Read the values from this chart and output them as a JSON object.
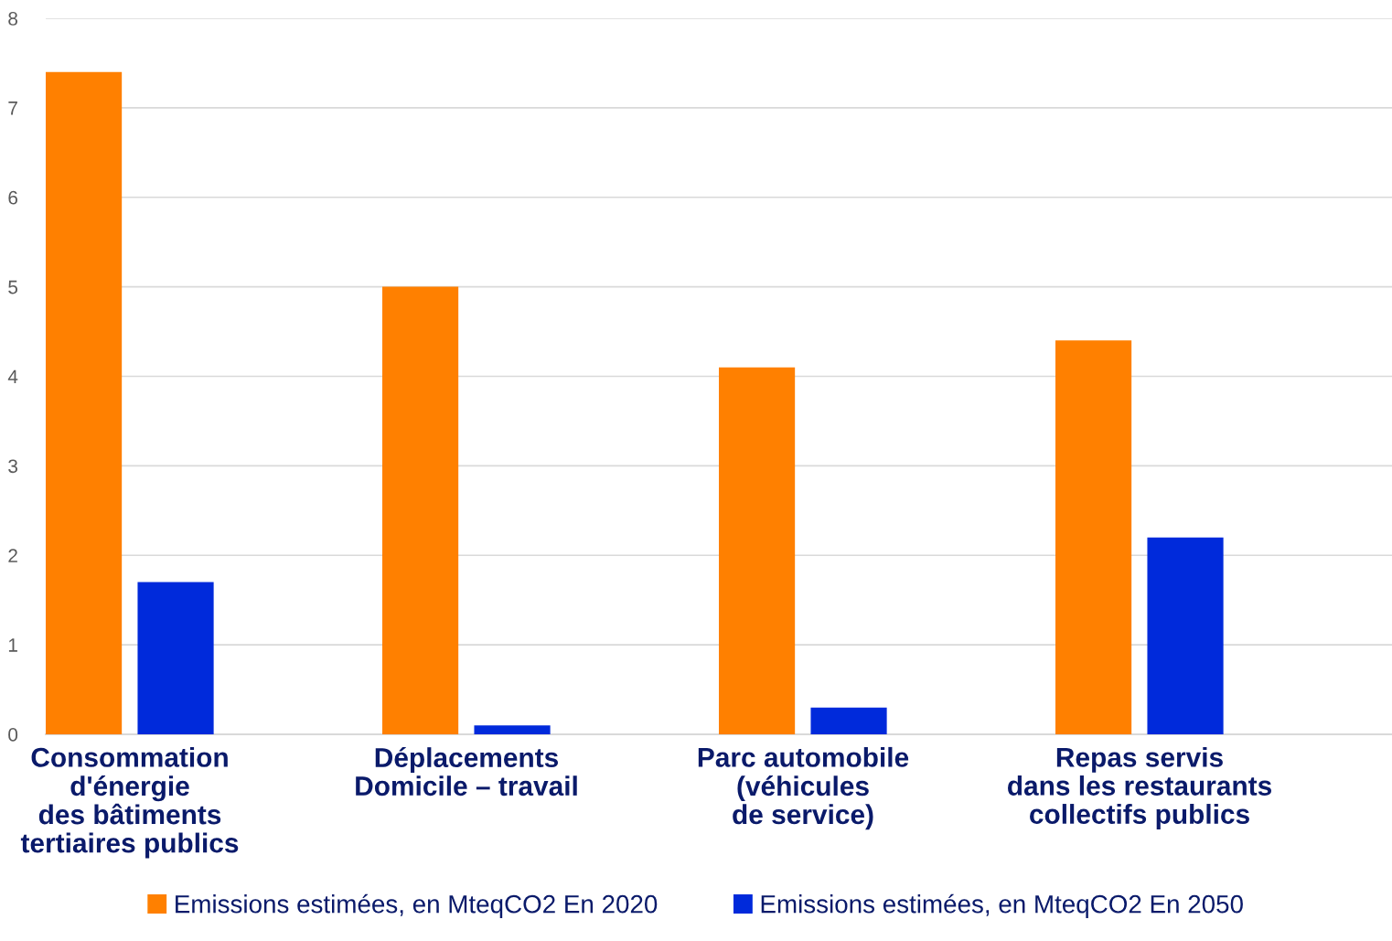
{
  "chart_data": {
    "type": "bar",
    "categories": [
      "Consommation\nd'énergie\ndes bâtiments\ntertiaires publics",
      "Déplacements\nDomicile – travail",
      "Parc automobile\n(véhicules\nde service)",
      "Repas servis\ndans les restaurants\ncollectifs publics"
    ],
    "series": [
      {
        "name": "Emissions estimées, en MteqCO2 En 2020",
        "color": "#ff8000",
        "values": [
          7.4,
          5.0,
          4.1,
          4.4
        ]
      },
      {
        "name": "Emissions estimées, en MteqCO2 En 2050",
        "color": "#002adb",
        "values": [
          1.7,
          0.1,
          0.3,
          2.2
        ]
      }
    ],
    "ylim": [
      0,
      8
    ],
    "yticks": [
      0,
      1,
      2,
      3,
      4,
      5,
      6,
      7,
      8
    ],
    "grid": "y",
    "legend": "bottom"
  }
}
